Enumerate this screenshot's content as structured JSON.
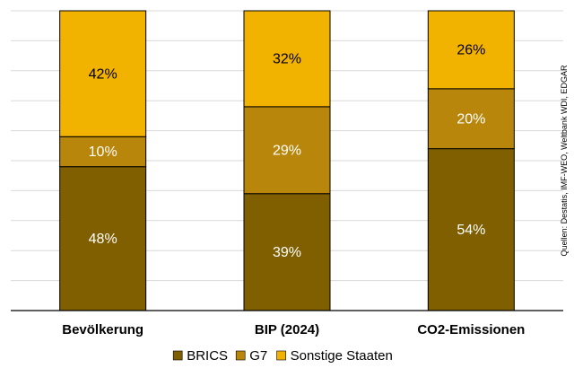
{
  "chart_data": {
    "type": "bar",
    "stacked": true,
    "categories": [
      "Bevölkerung",
      "BIP (2024)",
      "CO2-Emissionen"
    ],
    "series": [
      {
        "name": "BRICS",
        "values": [
          48,
          39,
          54
        ],
        "color": "#7f5f00",
        "label_color": "#ffffff"
      },
      {
        "name": "G7",
        "values": [
          10,
          29,
          20
        ],
        "color": "#b8860b",
        "label_color": "#ffffff"
      },
      {
        "name": "Sonstige Staaten",
        "values": [
          42,
          32,
          26
        ],
        "color": "#f2b200",
        "label_color": "#000000"
      }
    ],
    "value_suffix": "%",
    "ylim": [
      0,
      100
    ],
    "grid": true,
    "legend_position": "bottom",
    "source": "Quellen: Destatis, IMF-WEO, Weltbank WDI, EDGAR"
  }
}
